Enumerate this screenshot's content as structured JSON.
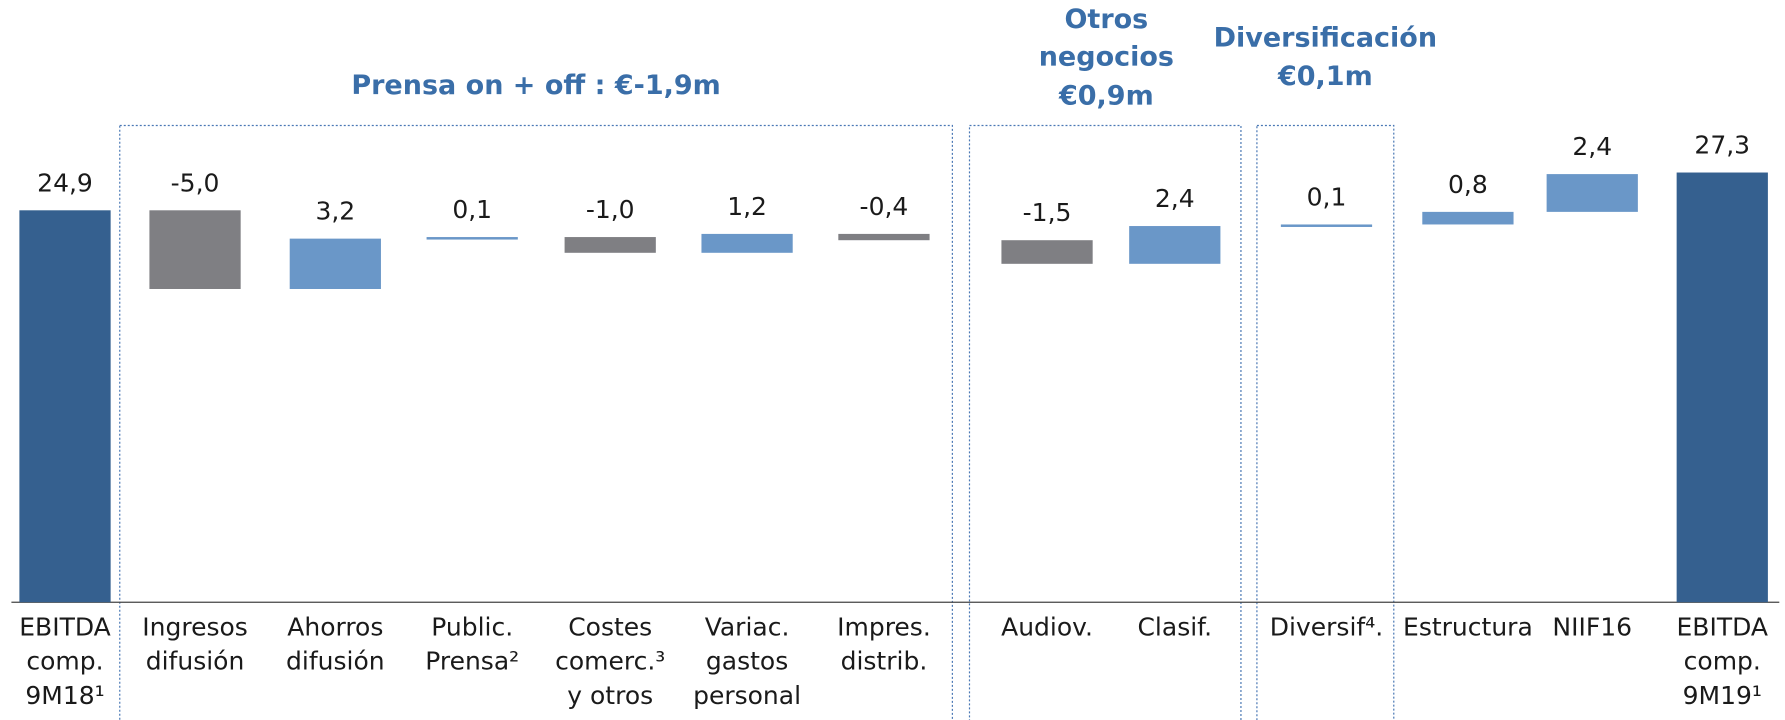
{
  "chart_data": {
    "type": "waterfall",
    "categories": [
      "EBITDA\ncomp.\n9M18¹",
      "Ingresos\ndifusión",
      "Ahorros\ndifusión",
      "Public.\nPrensa²",
      "Costes\ncomerc.³\ny otros",
      "Variac.\ngastos\npersonal",
      "Impres.\ndistrib.",
      "Audiov.",
      "Clasif.",
      "Diversif⁴.",
      "Estructura",
      "NIIF16",
      "EBITDA\ncomp.\n9M19¹"
    ],
    "values": [
      24.9,
      -5.0,
      3.2,
      0.1,
      -1.0,
      1.2,
      -0.4,
      -1.5,
      2.4,
      0.1,
      0.8,
      2.4,
      27.3
    ],
    "value_labels": [
      "24,9",
      "-5,0",
      "3,2",
      "0,1",
      "-1,0",
      "1,2",
      "-0,4",
      "-1,5",
      "2,4",
      "0,1",
      "0,8",
      "2,4",
      "27,3"
    ],
    "measure": [
      "absolute",
      "relative",
      "relative",
      "relative",
      "relative",
      "relative",
      "relative",
      "relative",
      "relative",
      "relative",
      "relative",
      "relative",
      "absolute"
    ],
    "colors": {
      "total": "#35608f",
      "increase": "#6a97c8",
      "decrease": "#7f7f83"
    },
    "groups": [
      {
        "label": [
          "Prensa on + off : €-1,9m"
        ]
      },
      {
        "label": [
          "Otros",
          "negocios",
          "€0,9m"
        ]
      },
      {
        "label": [
          "Diversificación",
          "€0,1m"
        ]
      }
    ]
  }
}
